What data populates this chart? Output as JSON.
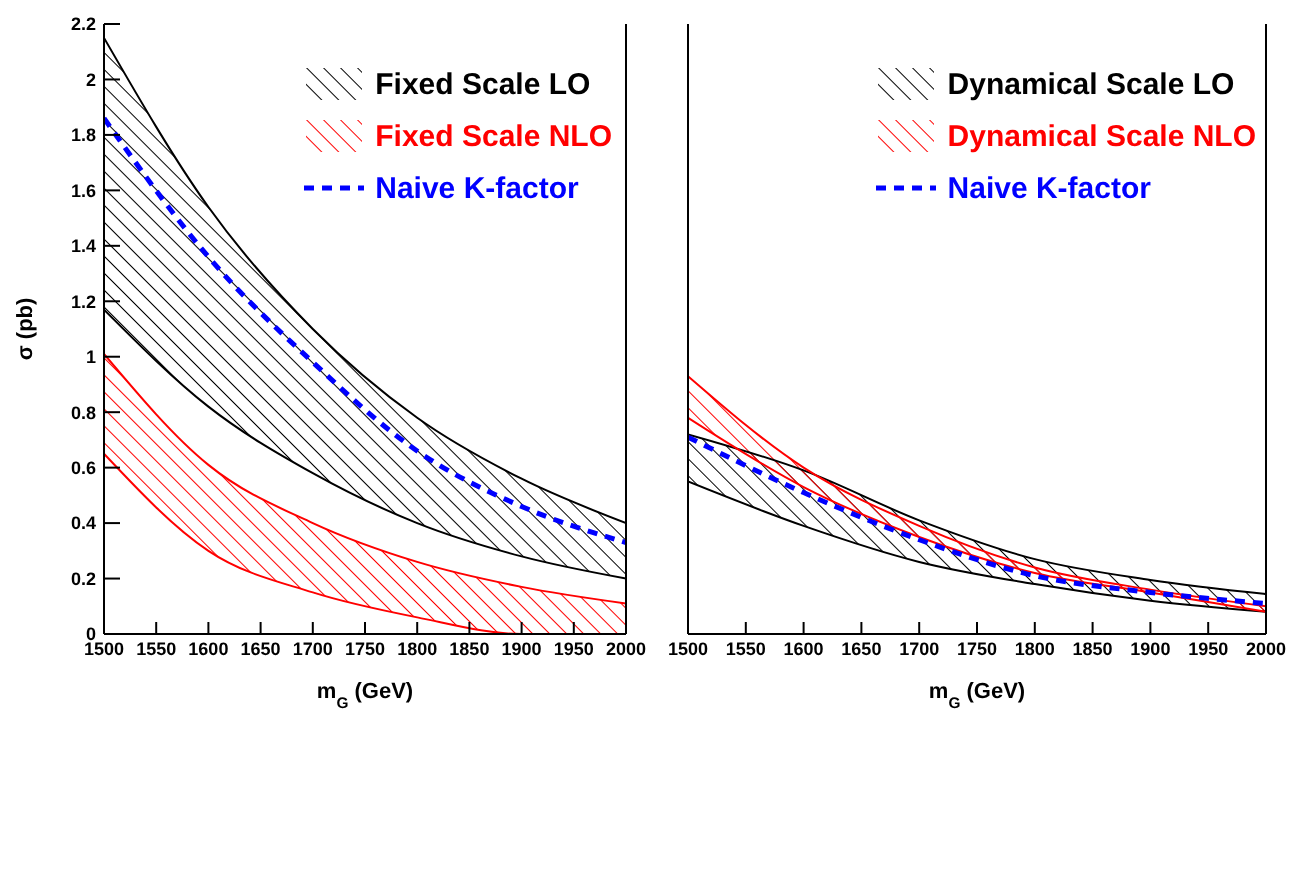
{
  "chart_data": [
    {
      "type": "area",
      "x": [
        1500,
        1600,
        1700,
        1800,
        1900,
        2000
      ],
      "xlabel": "m$_{G}$ (GeV)",
      "ylabel": "σ (pb)",
      "xlim": [
        1500,
        2000
      ],
      "xticks": [
        1500,
        1550,
        1600,
        1650,
        1700,
        1750,
        1800,
        1850,
        1900,
        1950,
        2000
      ],
      "ylim": [
        0,
        2.2
      ],
      "yticks": [
        0,
        0.2,
        0.4,
        0.6,
        0.8,
        1,
        1.2,
        1.4,
        1.6,
        1.8,
        2,
        2.2
      ],
      "legend": "top right",
      "grid": false,
      "series": [
        {
          "name": "Fixed Scale LO",
          "color": "#000000",
          "values": [
            2.15,
            1.54,
            1.1,
            0.78,
            0.56,
            0.4
          ]
        },
        {
          "color": "#000000",
          "type": "line",
          "values": [
            1.17,
            0.82,
            0.58,
            0.4,
            0.28,
            0.2
          ]
        },
        {
          "name": "Fixed Scale NLO",
          "color": "#ff0000",
          "values": [
            1.01,
            0.61,
            0.4,
            0.26,
            0.17,
            0.11
          ]
        },
        {
          "color": "#ff0000",
          "type": "line",
          "values": [
            0.65,
            0.3,
            0.15,
            0.06,
            0,
            0
          ]
        },
        {
          "name": "Naive K-factor",
          "color": "#0000ff",
          "type": "line",
          "line_style": "dashed",
          "values": [
            1.86,
            1.36,
            0.98,
            0.66,
            0.46,
            0.33
          ]
        }
      ]
    },
    {
      "type": "area",
      "x": [
        1500,
        1600,
        1700,
        1800,
        1900,
        2000
      ],
      "xlabel": "m$_{G}$ (GeV)",
      "xlim": [
        1500,
        2000
      ],
      "xticks": [
        1500,
        1550,
        1600,
        1650,
        1700,
        1750,
        1800,
        1850,
        1900,
        1950,
        2000
      ],
      "ylim": [
        0,
        2.2
      ],
      "yticks": [
        0,
        0.2,
        0.4,
        0.6,
        0.8,
        1,
        1.2,
        1.4,
        1.6,
        1.8,
        2,
        2.2
      ],
      "tick_labels": "x",
      "legend": "top right",
      "grid": false,
      "series": [
        {
          "name": "Dynamical Scale LO",
          "color": "#000000",
          "values": [
            0.72,
            0.59,
            0.41,
            0.27,
            0.195,
            0.144
          ]
        },
        {
          "color": "#000000",
          "type": "line",
          "values": [
            0.55,
            0.39,
            0.26,
            0.18,
            0.12,
            0.08
          ]
        },
        {
          "name": "Dynamical Scale NLO",
          "color": "#ff0000",
          "values": [
            0.93,
            0.6,
            0.39,
            0.24,
            0.16,
            0.1
          ]
        },
        {
          "color": "#ff0000",
          "type": "line",
          "values": [
            0.78,
            0.53,
            0.35,
            0.22,
            0.15,
            0.08
          ]
        },
        {
          "name": "Naive K-factor",
          "color": "#0000ff",
          "type": "line",
          "line_style": "dashed",
          "values": [
            0.71,
            0.51,
            0.34,
            0.21,
            0.15,
            0.11
          ]
        }
      ]
    }
  ]
}
